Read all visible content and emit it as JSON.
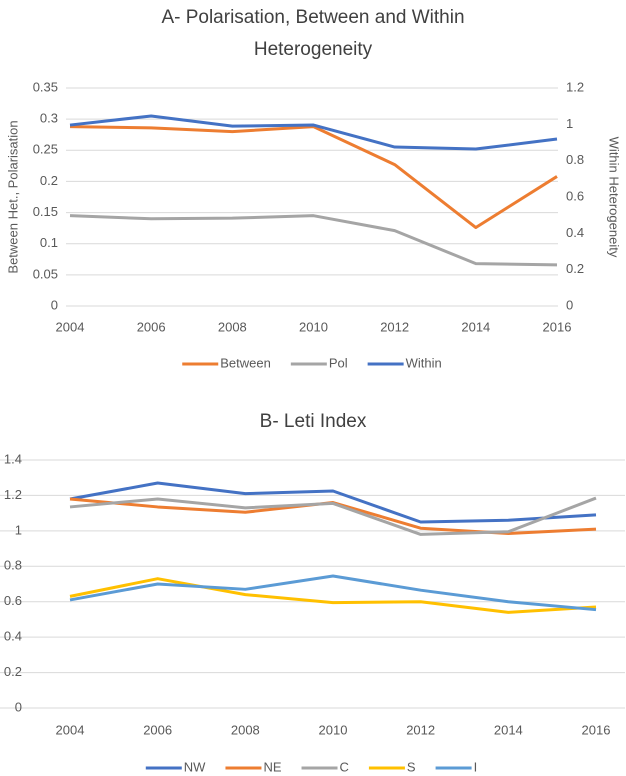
{
  "chart_data": [
    {
      "type": "line",
      "title": "A- Polarisation, Between and Within Heterogeneity",
      "ylabel": "Between Het., Polarisation",
      "y2label": "Within Heterogeneity",
      "x": [
        2004,
        2006,
        2008,
        2010,
        2012,
        2014,
        2016
      ],
      "xlim": [
        2004,
        2016
      ],
      "xticks": [
        2004,
        2006,
        2008,
        2010,
        2012,
        2014,
        2016
      ],
      "ylim": [
        0,
        0.35
      ],
      "yticks": [
        0,
        0.05,
        0.1,
        0.15,
        0.2,
        0.25,
        0.3,
        0.35
      ],
      "y2lim": [
        0,
        1.2
      ],
      "y2ticks": [
        0,
        0.2,
        0.4,
        0.6,
        0.8,
        1,
        1.2
      ],
      "grid": true,
      "legend": "bottom",
      "series": [
        {
          "name": "Between",
          "color": "#ed7d31",
          "values": [
            0.288,
            0.286,
            0.28,
            0.288,
            0.227,
            0.126,
            0.208
          ]
        },
        {
          "name": "Pol",
          "color": "#a5a5a5",
          "values": [
            0.145,
            0.14,
            0.141,
            0.145,
            0.121,
            0.068,
            0.066
          ]
        },
        {
          "name": "Within",
          "color": "#4472c4",
          "axis": "y2",
          "values": [
            0.996,
            1.046,
            0.99,
            0.996,
            0.875,
            0.864,
            0.919
          ]
        }
      ]
    },
    {
      "type": "line",
      "title": "B- Leti Index",
      "x": [
        2004,
        2006,
        2008,
        2010,
        2012,
        2014,
        2016
      ],
      "xlim": [
        2004,
        2016
      ],
      "xticks": [
        2004,
        2006,
        2008,
        2010,
        2012,
        2014,
        2016
      ],
      "ylim": [
        0,
        1.4
      ],
      "yticks": [
        0,
        0.2,
        0.4,
        0.6,
        0.8,
        1,
        1.2,
        1.4
      ],
      "grid": true,
      "legend": "bottom",
      "series": [
        {
          "name": "NW",
          "color": "#4472c4",
          "values": [
            1.18,
            1.27,
            1.21,
            1.225,
            1.05,
            1.06,
            1.09
          ]
        },
        {
          "name": "NE",
          "color": "#ed7d31",
          "values": [
            1.18,
            1.135,
            1.105,
            1.16,
            1.015,
            0.985,
            1.01
          ]
        },
        {
          "name": "C",
          "color": "#a5a5a5",
          "values": [
            1.135,
            1.18,
            1.13,
            1.155,
            0.98,
            0.995,
            1.185
          ]
        },
        {
          "name": "S",
          "color": "#ffc000",
          "values": [
            0.63,
            0.73,
            0.64,
            0.595,
            0.6,
            0.54,
            0.57
          ]
        },
        {
          "name": "I",
          "color": "#5b9bd5",
          "values": [
            0.61,
            0.7,
            0.67,
            0.745,
            0.665,
            0.6,
            0.555
          ]
        }
      ]
    }
  ]
}
